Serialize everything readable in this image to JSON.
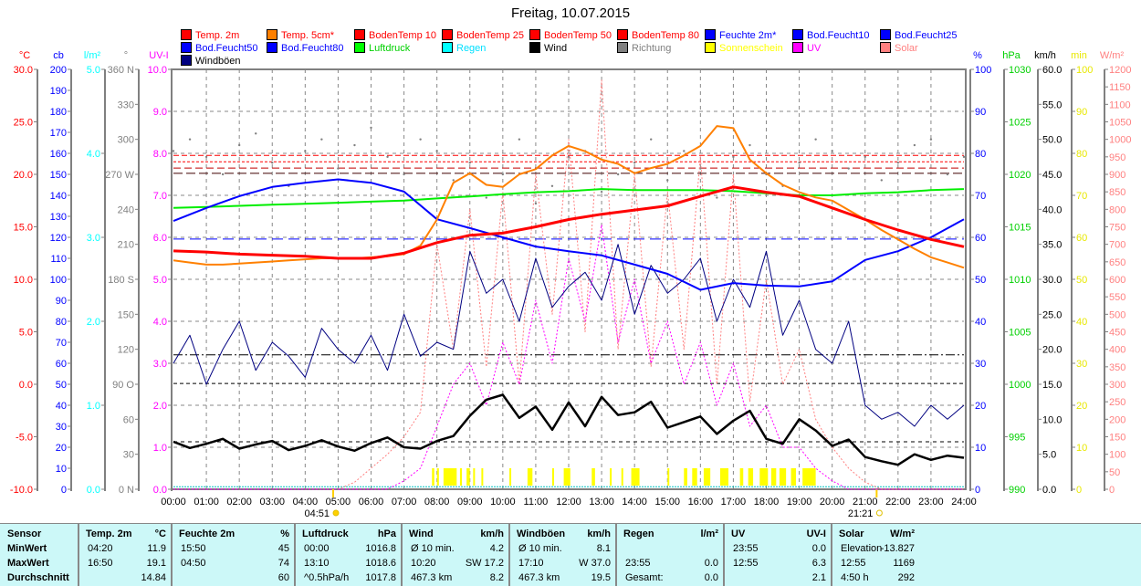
{
  "title": "Freitag, 10.07.2015",
  "legend": [
    {
      "label": "Temp. 2m",
      "color": "#ff0000",
      "text_color": "#ff0000"
    },
    {
      "label": "Temp. 5cm*",
      "color": "#ff8000",
      "text_color": "#ff0000"
    },
    {
      "label": "BodenTemp 10",
      "color": "#ff0000",
      "text_color": "#ff0000"
    },
    {
      "label": "BodenTemp 25",
      "color": "#ff0000",
      "text_color": "#ff0000"
    },
    {
      "label": "BodenTemp 50",
      "color": "#ff0000",
      "text_color": "#ff0000"
    },
    {
      "label": "BodenTemp 80",
      "color": "#ff0000",
      "text_color": "#ff0000"
    },
    {
      "label": "Feuchte 2m*",
      "color": "#0000ff",
      "text_color": "#0000ff"
    },
    {
      "label": "Bod.Feucht10",
      "color": "#0000ff",
      "text_color": "#0000ff"
    },
    {
      "label": "Bod.Feucht25",
      "color": "#0000ff",
      "text_color": "#0000ff"
    },
    {
      "label": "Bod.Feucht50",
      "color": "#0000ff",
      "text_color": "#0000ff"
    },
    {
      "label": "Bod.Feucht80",
      "color": "#0000ff",
      "text_color": "#0000ff"
    },
    {
      "label": "Luftdruck",
      "color": "#00ff00",
      "text_color": "#00d000"
    },
    {
      "label": "Regen",
      "color": "#00ffff",
      "text_color": "#00e0ff"
    },
    {
      "label": "Wind",
      "color": "#000000",
      "text_color": "#000000"
    },
    {
      "label": "Richtung",
      "color": "#808080",
      "text_color": "#808080"
    },
    {
      "label": "Sonnenschein",
      "color": "#ffff00",
      "text_color": "#ffff00"
    },
    {
      "label": "UV",
      "color": "#ff00ff",
      "text_color": "#ff00ff"
    },
    {
      "label": "Solar",
      "color": "#ff8080",
      "text_color": "#ff8080"
    },
    {
      "label": "Windböen",
      "color": "#000080",
      "text_color": "#000000"
    }
  ],
  "chart_data": {
    "type": "line",
    "title": "Freitag, 10.07.2015",
    "x_range_hours": [
      0,
      24
    ],
    "x_tick_labels": [
      "00:00",
      "01:00",
      "02:00",
      "03:00",
      "04:00",
      "05:00",
      "06:00",
      "07:00",
      "08:00",
      "09:00",
      "10:00",
      "11:00",
      "12:00",
      "13:00",
      "14:00",
      "15:00",
      "16:00",
      "17:00",
      "18:00",
      "19:00",
      "20:00",
      "21:00",
      "22:00",
      "23:00",
      "24:00"
    ],
    "sunrise": {
      "label": "04:51",
      "hour": 4.85
    },
    "sunset": {
      "label": "21:21",
      "hour": 21.35
    },
    "axes": {
      "temp": {
        "unit": "°C",
        "min": -10,
        "max": 30,
        "color": "#ff0000",
        "side": "left",
        "ticks": [
          "30.0",
          "25.0",
          "20.0",
          "15.0",
          "10.0",
          "5.0",
          "0.0",
          "-5.0",
          "-10.0"
        ]
      },
      "cb": {
        "unit": "cb",
        "min": 0,
        "max": 200,
        "color": "#0000ff",
        "side": "left",
        "ticks": [
          "200",
          "190",
          "180",
          "170",
          "160",
          "150",
          "140",
          "130",
          "120",
          "110",
          "100",
          "90",
          "80",
          "70",
          "60",
          "50",
          "40",
          "30",
          "20",
          "10",
          "0"
        ]
      },
      "rain": {
        "unit": "l/m²",
        "min": 0,
        "max": 5,
        "color": "#00ffff",
        "side": "left",
        "ticks": [
          "5.0",
          "4.0",
          "3.0",
          "2.0",
          "1.0",
          "0.0"
        ]
      },
      "dir": {
        "unit": "°",
        "min": 0,
        "max": 360,
        "color": "#808080",
        "side": "left",
        "ticks": [
          "360 N",
          "330",
          "300",
          "270 W",
          "240",
          "210",
          "180 S",
          "150",
          "120",
          "90 O",
          "60",
          "30",
          "0 N"
        ]
      },
      "uv": {
        "unit": "UV-I",
        "min": 0,
        "max": 10,
        "color": "#ff00ff",
        "side": "left",
        "ticks": [
          "10.0",
          "9.0",
          "8.0",
          "7.0",
          "6.0",
          "5.0",
          "4.0",
          "3.0",
          "2.0",
          "1.0",
          "0.0"
        ]
      },
      "hum": {
        "unit": "%",
        "min": 0,
        "max": 100,
        "color": "#0000ff",
        "side": "right",
        "ticks": [
          "100",
          "90",
          "80",
          "70",
          "60",
          "50",
          "40",
          "30",
          "20",
          "10",
          "0"
        ]
      },
      "press": {
        "unit": "hPa",
        "min": 990,
        "max": 1030,
        "color": "#00d000",
        "side": "right",
        "ticks": [
          "1030",
          "1025",
          "1020",
          "1015",
          "1010",
          "1005",
          "1000",
          "995",
          "990"
        ]
      },
      "wind": {
        "unit": "km/h",
        "min": 0,
        "max": 60,
        "color": "#000000",
        "side": "right",
        "ticks": [
          "60.0",
          "55.0",
          "50.0",
          "45.0",
          "40.0",
          "35.0",
          "30.0",
          "25.0",
          "20.0",
          "15.0",
          "10.0",
          "5.0",
          "0.0"
        ]
      },
      "sun": {
        "unit": "min",
        "min": 0,
        "max": 100,
        "color": "#e8e800",
        "side": "right",
        "ticks": [
          "100",
          "90",
          "80",
          "70",
          "60",
          "50",
          "40",
          "30",
          "20",
          "10",
          "0"
        ]
      },
      "solar": {
        "unit": "W/m²",
        "min": 0,
        "max": 1200,
        "color": "#ff8080",
        "side": "right",
        "ticks": [
          "1200",
          "1150",
          "1100",
          "1050",
          "1000",
          "950",
          "900",
          "850",
          "800",
          "750",
          "700",
          "650",
          "600",
          "550",
          "500",
          "450",
          "400",
          "350",
          "300",
          "250",
          "200",
          "150",
          "100",
          "50",
          "0"
        ]
      }
    },
    "constant_lines": [
      {
        "name": "BodenTemp 80",
        "axis": "temp",
        "value": 21.8,
        "color": "#ff0000",
        "dash": "6,3"
      },
      {
        "name": "BodenTemp 10",
        "axis": "temp",
        "value": 21.2,
        "color": "#ff0000",
        "dash": "3,2"
      },
      {
        "name": "BodenTemp 25",
        "axis": "temp",
        "value": 20.6,
        "color": "#c00000",
        "dash": "8,4"
      },
      {
        "name": "BodenTemp 50",
        "axis": "temp",
        "value": 20.1,
        "color": "#400000",
        "dash": "10,4"
      },
      {
        "name": "Bod.Feucht10",
        "axis": "hum",
        "value": 59.6,
        "color": "#0000ff",
        "dash": "12,6"
      },
      {
        "name": "Bod.Feucht25",
        "axis": "hum",
        "value": 32.0,
        "color": "#000000",
        "dash": "10,3,2,3"
      },
      {
        "name": "Bod.Feucht50",
        "axis": "hum",
        "value": 25.2,
        "color": "#000000",
        "dash": "4,3"
      },
      {
        "name": "Bod.Feucht80",
        "axis": "hum",
        "value": 11.3,
        "color": "#000000",
        "dash": "4,4"
      },
      {
        "name": "Regen",
        "axis": "rain",
        "value": 0.03,
        "color": "#00c0c0",
        "dash": "2,1"
      }
    ],
    "series": [
      {
        "name": "Solar",
        "axis": "solar",
        "color": "#ff8080",
        "width": 1,
        "dash": "2,2",
        "values": [
          0,
          0,
          0,
          0,
          0,
          0,
          0,
          0,
          0,
          0,
          0,
          20,
          60,
          100,
          150,
          220,
          700,
          400,
          800,
          350,
          850,
          300,
          900,
          500,
          1000,
          450,
          1169,
          400,
          900,
          350,
          850,
          400,
          950,
          300,
          900,
          250,
          600,
          300,
          400,
          200,
          120,
          60,
          20,
          0,
          0,
          0,
          0,
          0,
          0
        ]
      },
      {
        "name": "UV",
        "axis": "uv",
        "color": "#ff00ff",
        "width": 1,
        "dash": "2,2",
        "values": [
          0,
          0,
          0,
          0,
          0,
          0,
          0,
          0,
          0,
          0,
          0,
          0,
          0,
          0,
          0.2,
          0.5,
          1.5,
          2.5,
          3.0,
          2.0,
          3.5,
          2.5,
          4.5,
          3.0,
          5.5,
          4.0,
          6.3,
          3.5,
          5.0,
          3.0,
          4.0,
          2.5,
          3.5,
          2.0,
          3.0,
          1.5,
          2.0,
          1.0,
          1.0,
          0.5,
          0.2,
          0,
          0,
          0,
          0,
          0,
          0,
          0,
          0
        ]
      },
      {
        "name": "Windböen",
        "axis": "wind",
        "color": "#000080",
        "width": 1,
        "values": [
          18,
          22,
          15,
          20,
          24,
          17,
          21,
          19,
          16,
          23,
          20,
          18,
          22,
          17,
          25,
          19,
          21,
          20,
          34,
          28,
          30,
          24,
          33,
          26,
          29,
          31,
          27,
          35,
          25,
          32,
          28,
          30,
          33,
          24,
          30,
          26,
          34,
          22,
          27,
          20,
          18,
          24,
          12,
          10,
          11,
          9,
          12,
          10,
          12
        ]
      },
      {
        "name": "Luftdruck",
        "axis": "press",
        "color": "#00ee00",
        "width": 2,
        "values": [
          1016.8,
          1016.9,
          1017.0,
          1017.1,
          1017.2,
          1017.3,
          1017.4,
          1017.5,
          1017.7,
          1017.9,
          1018.1,
          1018.3,
          1018.4,
          1018.6,
          1018.5,
          1018.5,
          1018.5,
          1018.4,
          1018.2,
          1018.0,
          1018.0,
          1018.2,
          1018.3,
          1018.5,
          1018.6
        ]
      },
      {
        "name": "Feuchte 2m*",
        "axis": "hum",
        "color": "#0000ff",
        "width": 2,
        "values": [
          63.9,
          67,
          69.8,
          72,
          73,
          73.8,
          73,
          70.9,
          64.3,
          62.2,
          60,
          57.8,
          56.7,
          55.7,
          53.5,
          51.3,
          47.5,
          49.1,
          48.5,
          48.3,
          49.5,
          54.6,
          56.7,
          60,
          64.3
        ]
      },
      {
        "name": "Temp. 5cm*",
        "axis": "temp",
        "color": "#ff8000",
        "width": 2,
        "values": [
          11.8,
          11.6,
          11.4,
          11.4,
          11.5,
          11.6,
          11.7,
          11.8,
          11.9,
          12.0,
          12.0,
          12.0,
          12.1,
          12.2,
          12.4,
          13.2,
          15.7,
          19.2,
          20.1,
          19.0,
          18.8,
          20.0,
          20.5,
          21.8,
          22.7,
          22.2,
          21.4,
          21.0,
          20.1,
          20.6,
          21.0,
          21.8,
          22.7,
          24.6,
          24.4,
          21.4,
          20.1,
          19.0,
          18.3,
          17.8,
          17.5,
          16.6,
          15.7,
          14.7,
          13.8,
          12.9,
          12.1,
          11.6,
          11.1
        ]
      },
      {
        "name": "Temp. 2m",
        "axis": "temp",
        "color": "#ff0000",
        "width": 3,
        "values": [
          12.7,
          12.6,
          12.4,
          12.3,
          12.2,
          12.0,
          12.0,
          12.5,
          13.5,
          14.2,
          14.4,
          15.0,
          15.7,
          16.2,
          16.6,
          17.0,
          17.9,
          18.8,
          18.3,
          17.9,
          16.8,
          15.7,
          14.7,
          13.8,
          13.1
        ]
      },
      {
        "name": "Wind",
        "axis": "wind",
        "color": "#000000",
        "width": 2.5,
        "values": [
          6.8,
          5.9,
          6.5,
          7.2,
          5.8,
          6.4,
          6.9,
          5.6,
          6.2,
          7.0,
          6.1,
          5.5,
          6.6,
          7.4,
          6.0,
          5.8,
          6.9,
          7.6,
          10.5,
          12.8,
          13.5,
          10.2,
          11.8,
          8.5,
          12.4,
          9.0,
          13.2,
          10.6,
          11.0,
          12.5,
          8.8,
          9.6,
          10.4,
          7.9,
          9.8,
          11.2,
          7.2,
          6.5,
          10.0,
          8.4,
          6.2,
          7.1,
          4.6,
          4.0,
          3.5,
          5.0,
          4.2,
          4.8,
          4.5
        ]
      }
    ],
    "direction": {
      "name": "Richtung",
      "axis": "dir",
      "color": "#808080",
      "values": [
        290,
        300,
        285,
        270,
        295,
        305,
        280,
        260,
        290,
        300,
        275,
        295,
        310,
        285,
        270,
        300,
        290,
        265,
        280,
        250,
        270,
        300,
        245,
        260,
        285,
        290,
        255,
        270,
        280,
        300,
        265,
        290,
        275,
        250,
        285,
        295,
        270,
        260,
        280,
        300,
        290,
        275,
        285,
        265,
        280,
        295,
        300,
        270,
        285
      ]
    },
    "sunshine": {
      "name": "Sonnenschein",
      "axis": "sun",
      "color": "#ffff00",
      "minutes": 5,
      "intervals": [
        [
          7.85,
          7.92
        ],
        [
          8.0,
          8.06
        ],
        [
          8.2,
          8.6
        ],
        [
          8.7,
          8.76
        ],
        [
          8.9,
          9.0
        ],
        [
          9.1,
          9.15
        ],
        [
          9.35,
          9.4
        ],
        [
          10.2,
          10.25
        ],
        [
          10.75,
          10.9
        ],
        [
          11.5,
          11.55
        ],
        [
          11.85,
          12.05
        ],
        [
          12.7,
          12.8
        ],
        [
          13.25,
          13.3
        ],
        [
          13.6,
          13.65
        ],
        [
          13.9,
          14.15
        ],
        [
          15.0,
          15.05
        ],
        [
          15.5,
          15.6
        ],
        [
          15.75,
          15.9
        ],
        [
          16.1,
          16.3
        ],
        [
          16.6,
          16.85
        ],
        [
          17.2,
          17.3
        ],
        [
          17.45,
          17.6
        ],
        [
          17.8,
          18.05
        ],
        [
          18.15,
          18.3
        ],
        [
          18.4,
          18.6
        ],
        [
          18.75,
          18.9
        ],
        [
          19.1,
          19.5
        ]
      ]
    }
  },
  "table": {
    "sensor_label": "Sensor",
    "row_labels": [
      "MinWert",
      "MaxWert",
      "Durchschnitt"
    ],
    "columns": [
      {
        "label": "Temp. 2m",
        "unit": "°C",
        "rows": [
          [
            "04:20",
            "11.9"
          ],
          [
            "16:50",
            "19.1"
          ],
          [
            "",
            "14.84"
          ]
        ]
      },
      {
        "label": "Feuchte 2m",
        "unit": "%",
        "rows": [
          [
            "15:50",
            "45"
          ],
          [
            "04:50",
            "74"
          ],
          [
            "",
            "60"
          ]
        ]
      },
      {
        "label": "Luftdruck",
        "unit": "hPa",
        "rows": [
          [
            "00:00",
            "1016.8"
          ],
          [
            "13:10",
            "1018.6"
          ],
          [
            "^0.5hPa/h",
            "1017.8"
          ]
        ]
      },
      {
        "label": "Wind",
        "unit": "km/h",
        "rows": [
          [
            "Ø 10 min.",
            "4.2"
          ],
          [
            "10:20",
            "SW 17.2"
          ],
          [
            "467.3 km",
            "8.2"
          ]
        ]
      },
      {
        "label": "Windböen",
        "unit": "km/h",
        "rows": [
          [
            "Ø 10 min.",
            "8.1"
          ],
          [
            "17:10",
            "W 37.0"
          ],
          [
            "467.3 km",
            "19.5"
          ]
        ]
      },
      {
        "label": "Regen",
        "unit": "l/m²",
        "rows": [
          [
            "",
            ""
          ],
          [
            "23:55",
            "0.0"
          ],
          [
            "Gesamt:",
            "0.0"
          ]
        ]
      },
      {
        "label": "UV",
        "unit": "UV-I",
        "rows": [
          [
            "23:55",
            "0.0"
          ],
          [
            "12:55",
            "6.3"
          ],
          [
            "",
            "2.1"
          ]
        ]
      },
      {
        "label": "Solar",
        "unit": "W/m²",
        "rows": [
          [
            "Elevation",
            "-13.827"
          ],
          [
            "12:55",
            "1169"
          ],
          [
            "4:50 h",
            "292"
          ]
        ]
      }
    ]
  }
}
